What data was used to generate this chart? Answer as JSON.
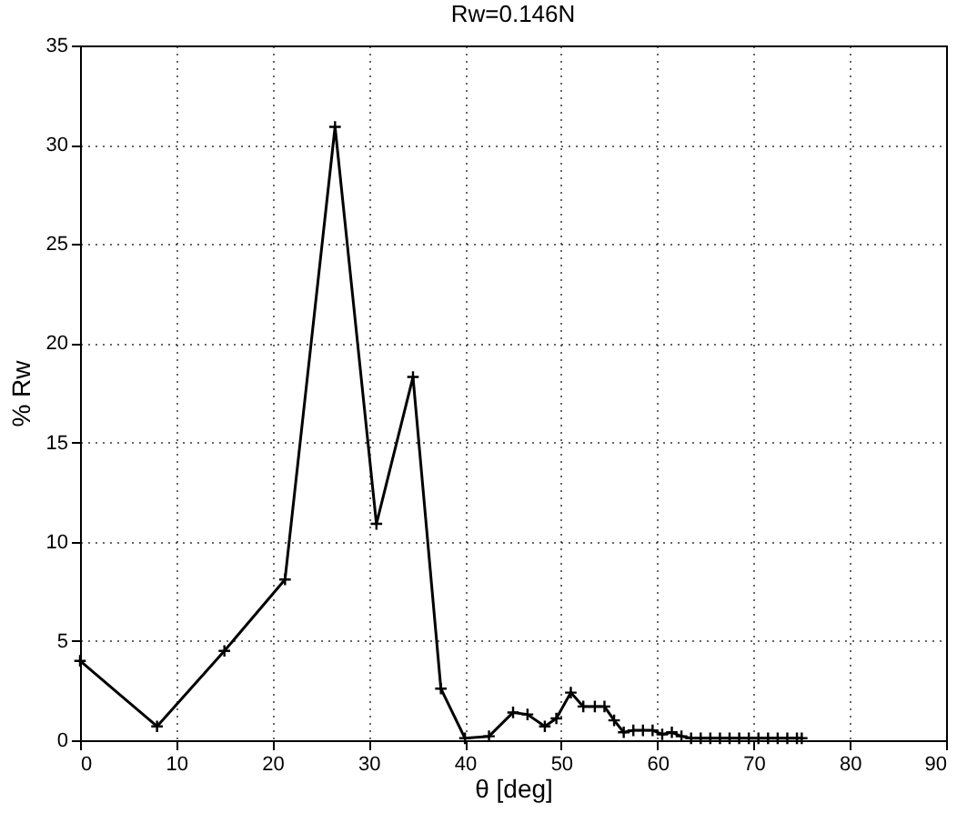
{
  "chart_data": {
    "type": "line",
    "title": "Rw=0.146N",
    "xlabel": "θ [deg]",
    "ylabel": "% Rw",
    "x": [
      0,
      8,
      15,
      21.3,
      26.5,
      30.8,
      34.6,
      37.5,
      40,
      42.5,
      45,
      46.5,
      48.3,
      49.5,
      51,
      52.3,
      53.5,
      54.5,
      55.5,
      56.5,
      57.5,
      58.5,
      59.5,
      60.5,
      61.5,
      62.5,
      63.5,
      64.5,
      65.5,
      66.5,
      67.5,
      68.5,
      69.5,
      70.5,
      71.5,
      72.5,
      73.5,
      74.5,
      75
    ],
    "series": [
      {
        "color": "#000000",
        "values": [
          4.0,
          0.7,
          4.5,
          8.1,
          30.9,
          10.9,
          18.3,
          2.6,
          0.1,
          0.2,
          1.4,
          1.3,
          0.7,
          1.1,
          2.4,
          1.7,
          1.7,
          1.7,
          1.0,
          0.4,
          0.5,
          0.5,
          0.5,
          0.3,
          0.4,
          0.2,
          0.1,
          0.1,
          0.1,
          0.1,
          0.1,
          0.1,
          0.1,
          0.1,
          0.1,
          0.1,
          0.1,
          0.1,
          0.1
        ]
      }
    ],
    "xlim": [
      0,
      90
    ],
    "xticks": [
      0,
      10,
      20,
      30,
      40,
      50,
      60,
      70,
      80,
      90
    ],
    "ylim": [
      0,
      35
    ],
    "yticks": [
      0,
      5,
      10,
      15,
      20,
      25,
      30,
      35
    ],
    "grid": true,
    "marker": "cross",
    "line_style": "solid",
    "legend": false
  }
}
